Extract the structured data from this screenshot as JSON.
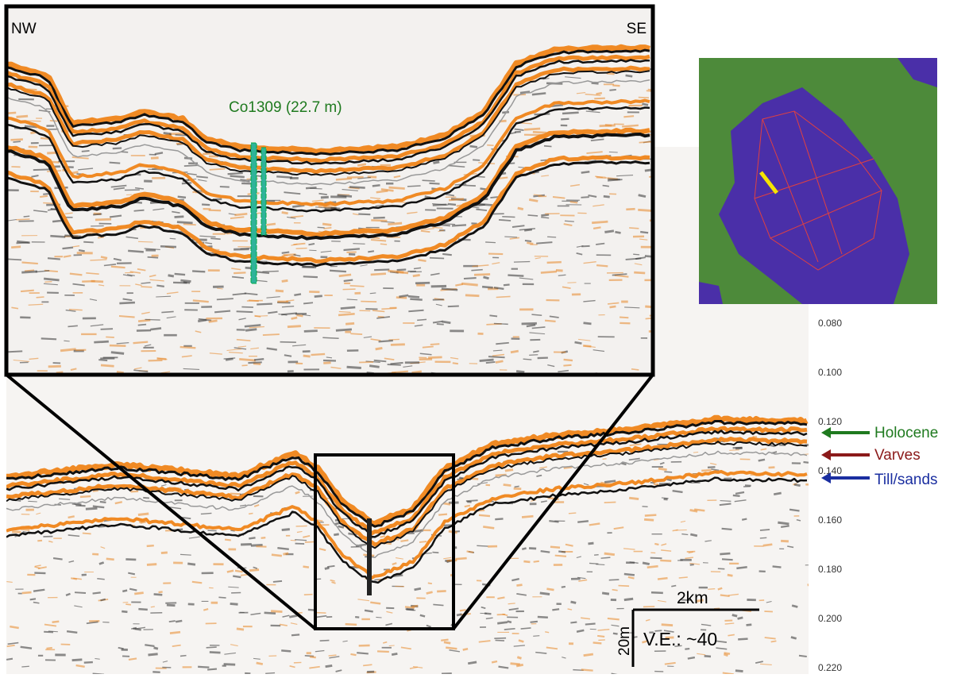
{
  "inset": {
    "left_label": "NW",
    "right_label": "SE",
    "core_label": "Co1309 (22.7 m)"
  },
  "depth_axis": [
    "0.080",
    "0.100",
    "0.120",
    "0.140",
    "0.160",
    "0.180",
    "0.200",
    "0.220"
  ],
  "units": [
    "Holocene",
    "Varves",
    "Till/sands"
  ],
  "scale": {
    "horizontal": "2km",
    "vertical": "20m",
    "exaggeration": "V.E.: ~40"
  }
}
